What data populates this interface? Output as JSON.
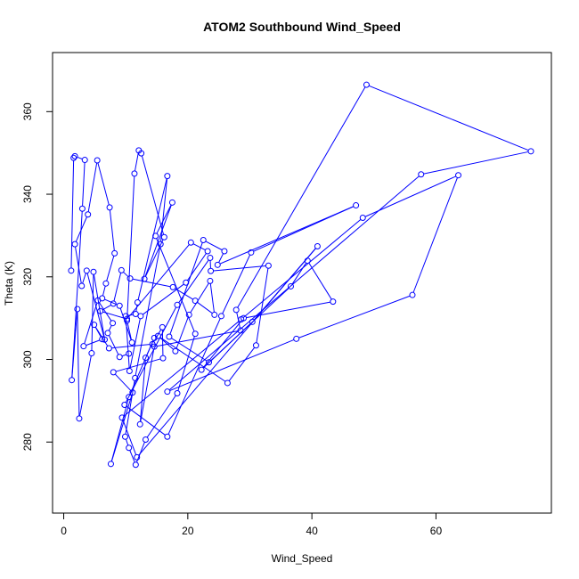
{
  "chart_data": {
    "type": "scatter",
    "title": "ATOM2 Southbound Wind_Speed",
    "xlabel": "Wind_Speed",
    "ylabel": "Theta (K)",
    "xlim": [
      -1.8,
      78.6
    ],
    "ylim": [
      262.8,
      374.3
    ],
    "x_ticks": [
      0,
      20,
      40,
      60
    ],
    "y_ticks": [
      280,
      300,
      320,
      340,
      360
    ],
    "x_tick_labels": [
      "0",
      "20",
      "40",
      "60"
    ],
    "y_tick_labels": [
      "280",
      "300",
      "320",
      "340",
      "360"
    ],
    "series_color": "#0000ff",
    "points_connected": true,
    "grid": false,
    "series": [
      {
        "x": [
          1.2,
          1.6,
          1.8,
          3.4,
          3.0,
          1.3,
          2.2,
          2.5,
          4.5,
          4.8,
          6.6,
          3.7,
          2.9,
          1.8,
          3.9,
          5.4,
          7.4,
          8.2,
          6.8,
          6.2,
          9.0,
          11.0,
          10.2,
          11.4,
          12.1,
          12.5,
          16.2,
          13.0,
          17.5,
          14.8,
          21.2,
          18.3,
          13.2,
          11.6,
          10.5,
          9.9,
          11.5,
          15.6,
          16.7,
          11.9,
          11.6,
          10.0,
          10.6,
          12.4,
          19.7,
          23.2,
          20.5,
          10.2,
          5.9,
          8.0,
          9.3,
          10.7,
          17.6,
          21.2,
          24.3,
          23.6,
          20.2,
          18.0,
          15.2,
          26.4,
          31.0,
          33.0,
          23.7,
          23.6,
          18.3,
          9.8,
          16.7,
          25.4,
          30.2,
          47.1,
          24.8,
          25.9,
          22.5,
          17.0,
          23.4,
          36.6,
          39.3,
          43.4,
          29.0,
          22.2,
          30.4,
          40.9,
          11.8,
          9.4,
          28.6,
          48.2,
          63.6,
          56.2,
          37.5,
          16.7,
          57.6,
          75.3,
          48.8,
          27.8,
          28.5,
          14.6,
          12.3,
          13.2,
          14.6,
          10.5,
          7.6,
          11.1,
          8.0,
          16.0,
          15.9,
          14.3,
          7.3,
          4.9,
          6.2,
          3.2,
          5.5,
          7.9,
          7.1,
          9.0,
          10.5
        ],
        "y": [
          321.5,
          348.8,
          349.2,
          348.3,
          336.5,
          295.0,
          312.2,
          285.7,
          301.5,
          321.2,
          304.8,
          321.5,
          317.8,
          327.9,
          335.1,
          348.2,
          336.8,
          325.7,
          318.4,
          314.8,
          313.0,
          304.1,
          309.4,
          345.0,
          350.6,
          349.9,
          329.6,
          319.5,
          338.0,
          329.9,
          306.2,
          291.8,
          280.6,
          274.5,
          278.6,
          281.3,
          295.5,
          327.9,
          344.4,
          313.8,
          311.0,
          310.5,
          297.2,
          310.5,
          318.6,
          326.2,
          328.3,
          309.8,
          311.7,
          313.5,
          321.6,
          319.6,
          317.5,
          314.2,
          310.8,
          319.0,
          310.8,
          302.0,
          305.7,
          294.3,
          303.4,
          322.7,
          321.4,
          324.6,
          313.2,
          289.0,
          281.3,
          310.5,
          325.9,
          337.3,
          322.9,
          326.2,
          328.9,
          305.5,
          299.3,
          317.7,
          323.9,
          314.0,
          310.0,
          297.5,
          309.1,
          327.4,
          276.3,
          285.9,
          309.7,
          334.3,
          344.6,
          315.6,
          305.0,
          292.2,
          344.8,
          350.4,
          366.5,
          312.0,
          307.0,
          303.1,
          284.3,
          300.4,
          305.2,
          290.9,
          274.7,
          292.0,
          296.9,
          300.3,
          307.8,
          303.7,
          302.7,
          308.4,
          304.9,
          303.2,
          314.3,
          308.8,
          306.4,
          300.6,
          301.4
        ]
      }
    ]
  }
}
